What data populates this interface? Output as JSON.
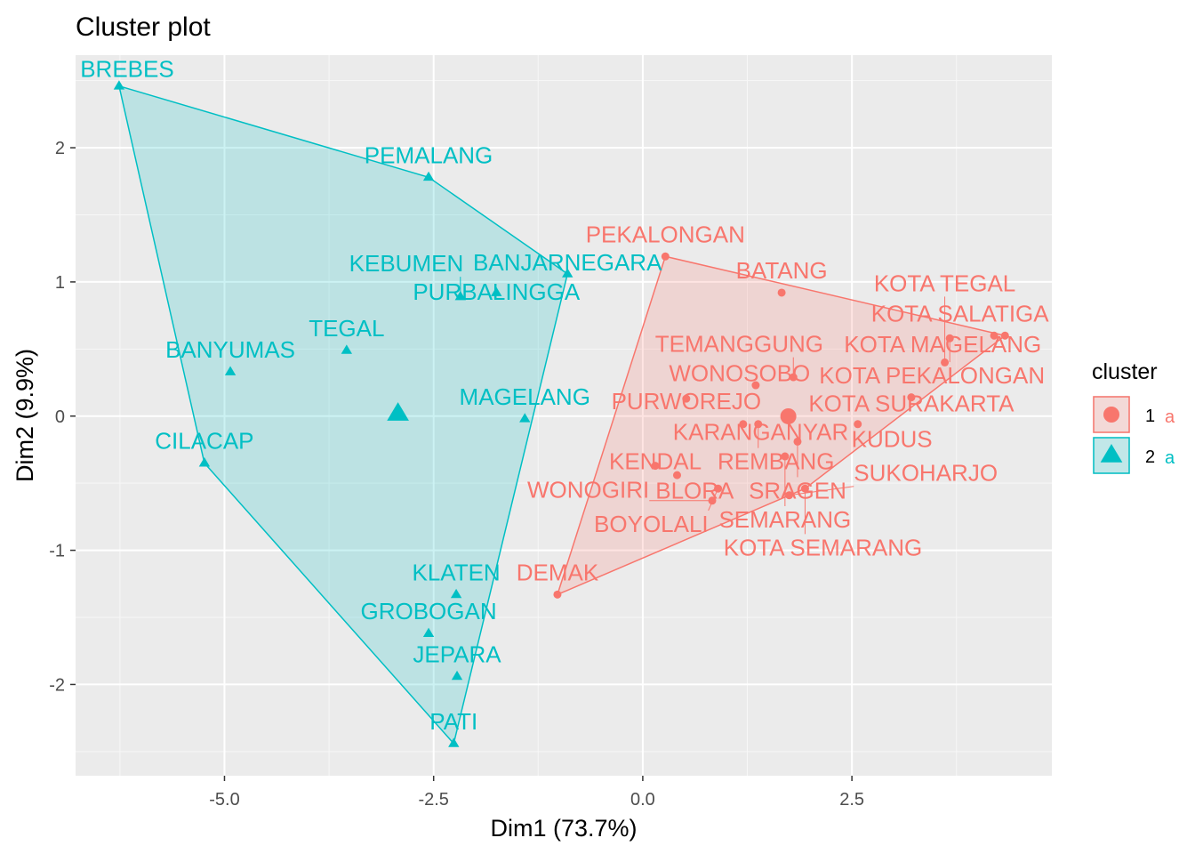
{
  "chart_data": {
    "type": "scatter",
    "title": "Cluster plot",
    "xlabel": "Dim1 (73.7%)",
    "ylabel": "Dim2 (9.9%)",
    "xlim": [
      -6.78,
      4.89
    ],
    "ylim": [
      -2.68,
      2.69
    ],
    "xticks": [
      -5.0,
      -2.5,
      0.0,
      2.5
    ],
    "xtick_labels": [
      "-5.0",
      "-2.5",
      "0.0",
      "2.5"
    ],
    "yticks": [
      -2,
      -1,
      0,
      1,
      2
    ],
    "ytick_labels": [
      "-2",
      "-1",
      "0",
      "1",
      "2"
    ],
    "grid": true,
    "legend": {
      "title": "cluster",
      "position": "right",
      "entries": [
        "1",
        "2"
      ],
      "key_letter": "a"
    },
    "series": [
      {
        "name": "1",
        "color": "#F8766D",
        "shape": "circle",
        "points": [
          {
            "label": "PEKALONGAN",
            "x": 0.27,
            "y": 1.19
          },
          {
            "label": "BATANG",
            "x": 1.66,
            "y": 0.92
          },
          {
            "label": "DEMAK",
            "x": -1.02,
            "y": -1.33
          },
          {
            "label": "TEMANGGUNG",
            "x": 1.8,
            "y": 0.29
          },
          {
            "label": "WONOSOBO",
            "x": 1.35,
            "y": 0.23
          },
          {
            "label": "PURWOREJO",
            "x": 0.52,
            "y": 0.13
          },
          {
            "label": "KARANGANYAR",
            "x": 1.2,
            "y": -0.06
          },
          {
            "label": "REMBANG",
            "x": 1.38,
            "y": -0.06
          },
          {
            "label": "KUDUS",
            "x": 2.57,
            "y": -0.06
          },
          {
            "label": "SRAGEN",
            "x": 1.85,
            "y": -0.19
          },
          {
            "label": "SEMARANG",
            "x": 1.7,
            "y": -0.3
          },
          {
            "label": "KENDAL",
            "x": 0.15,
            "y": -0.37
          },
          {
            "label": "BLORA",
            "x": 0.41,
            "y": -0.44
          },
          {
            "label": "BOYOLALI",
            "x": 0.9,
            "y": -0.54
          },
          {
            "label": "KOTA SEMARANG",
            "x": 1.94,
            "y": -0.54
          },
          {
            "label": "SUKOHARJO",
            "x": 1.75,
            "y": -0.59
          },
          {
            "label": "WONOGIRI",
            "x": 0.83,
            "y": -0.63
          },
          {
            "label": "KOTA SURAKARTA",
            "x": 3.21,
            "y": 0.14
          },
          {
            "label": "KOTA TEGAL",
            "x": 3.61,
            "y": 0.4
          },
          {
            "label": "KOTA PEKALONGAN",
            "x": 3.67,
            "y": 0.58
          },
          {
            "label": "KOTA SALATIGA",
            "x": 4.2,
            "y": 0.6
          },
          {
            "label": "KOTA MAGELANG",
            "x": 4.33,
            "y": 0.6
          }
        ]
      },
      {
        "name": "2",
        "color": "#00BFC4",
        "shape": "triangle",
        "points": [
          {
            "label": "BREBES",
            "x": -6.26,
            "y": 2.46
          },
          {
            "label": "PEMALANG",
            "x": -2.56,
            "y": 1.78
          },
          {
            "label": "BANJARNEGARA",
            "x": -0.9,
            "y": 1.06
          },
          {
            "label": "PURBALINGGA",
            "x": -1.75,
            "y": 0.92
          },
          {
            "label": "KEBUMEN",
            "x": -2.18,
            "y": 0.89
          },
          {
            "label": "TEGAL",
            "x": -3.54,
            "y": 0.49
          },
          {
            "label": "BANYUMAS",
            "x": -4.93,
            "y": 0.33
          },
          {
            "label": "MAGELANG",
            "x": -1.41,
            "y": -0.02
          },
          {
            "label": "CILACAP",
            "x": -5.24,
            "y": -0.35
          },
          {
            "label": "KLATEN",
            "x": -2.23,
            "y": -1.33
          },
          {
            "label": "GROBOGAN",
            "x": -2.56,
            "y": -1.62
          },
          {
            "label": "JEPARA",
            "x": -2.22,
            "y": -1.94
          },
          {
            "label": "PATI",
            "x": -2.26,
            "y": -2.44
          }
        ]
      }
    ]
  }
}
